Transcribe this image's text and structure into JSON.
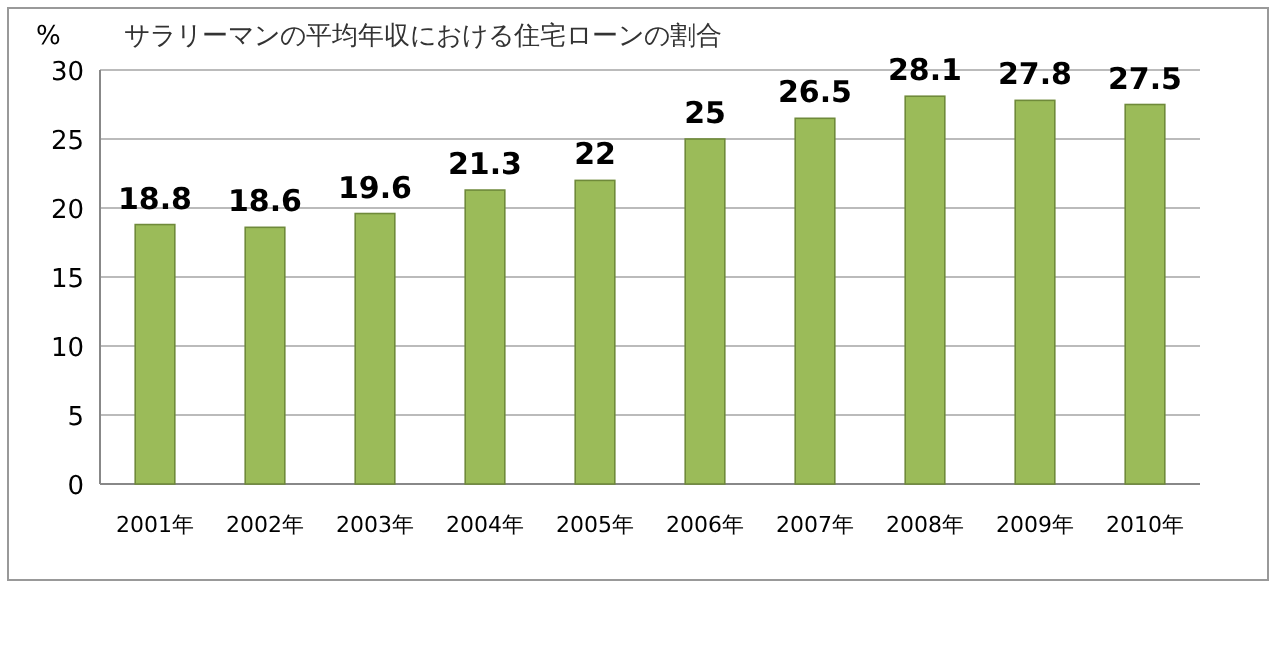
{
  "chart_data": {
    "type": "bar",
    "title": "サラリーマンの平均年収における住宅ローンの割合",
    "ylabel": "%",
    "categories": [
      "2001年",
      "2002年",
      "2003年",
      "2004年",
      "2005年",
      "2006年",
      "2007年",
      "2008年",
      "2009年",
      "2010年"
    ],
    "values": [
      18.8,
      18.6,
      19.6,
      21.3,
      22,
      25,
      26.5,
      28.1,
      27.8,
      27.5
    ],
    "color": "#9bbb59",
    "ylim": [
      0,
      30
    ],
    "yticks": [
      0,
      5,
      10,
      15,
      20,
      25,
      30
    ],
    "grid": "y",
    "data_labels": true
  }
}
